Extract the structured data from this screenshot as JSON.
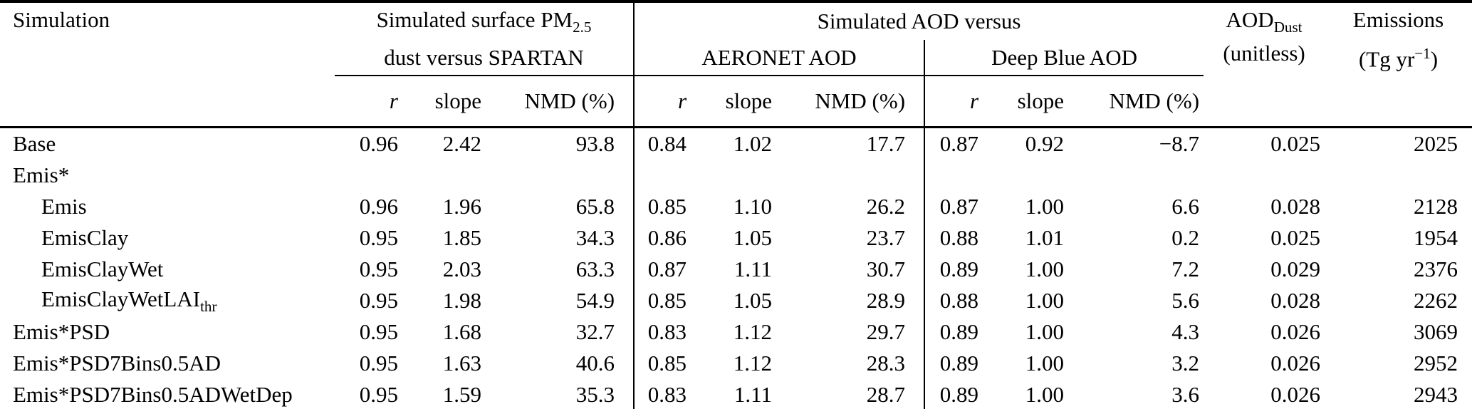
{
  "table": {
    "title_col": "Simulation",
    "groups": {
      "spartan": {
        "l1_main": "Simulated surface PM",
        "l1_sub": "2.5",
        "line2": "dust versus SPARTAN"
      },
      "aod_versus": "Simulated AOD versus",
      "aeronet": "AERONET AOD",
      "deepblue": "Deep Blue AOD",
      "aod_dust": {
        "main": "AOD",
        "sub": "Dust",
        "line2": "(unitless)"
      },
      "emissions": {
        "line1": "Emissions",
        "l2_pre": "(Tg yr",
        "l2_sup": "−1",
        "l2_post": ")"
      }
    },
    "sub": {
      "r": "r",
      "slope": "slope",
      "nmd": "NMD (%)"
    },
    "rows": [
      {
        "name": "Base",
        "sub": "",
        "indent": false,
        "values": [
          "0.96",
          "2.42",
          "93.8",
          "0.84",
          "1.02",
          "17.7",
          "0.87",
          "0.92",
          "−8.7",
          "0.025",
          "2025"
        ]
      },
      {
        "name": "Emis*",
        "sub": "",
        "indent": false,
        "values": [
          "",
          "",
          "",
          "",
          "",
          "",
          "",
          "",
          "",
          "",
          ""
        ]
      },
      {
        "name": "Emis",
        "sub": "",
        "indent": true,
        "values": [
          "0.96",
          "1.96",
          "65.8",
          "0.85",
          "1.10",
          "26.2",
          "0.87",
          "1.00",
          "6.6",
          "0.028",
          "2128"
        ]
      },
      {
        "name": "EmisClay",
        "sub": "",
        "indent": true,
        "values": [
          "0.95",
          "1.85",
          "34.3",
          "0.86",
          "1.05",
          "23.7",
          "0.88",
          "1.01",
          "0.2",
          "0.025",
          "1954"
        ]
      },
      {
        "name": "EmisClayWet",
        "sub": "",
        "indent": true,
        "values": [
          "0.95",
          "2.03",
          "63.3",
          "0.87",
          "1.11",
          "30.7",
          "0.89",
          "1.00",
          "7.2",
          "0.029",
          "2376"
        ]
      },
      {
        "name": "EmisClayWetLAI",
        "sub": "thr",
        "indent": true,
        "values": [
          "0.95",
          "1.98",
          "54.9",
          "0.85",
          "1.05",
          "28.9",
          "0.88",
          "1.00",
          "5.6",
          "0.028",
          "2262"
        ]
      },
      {
        "name": "Emis*PSD",
        "sub": "",
        "indent": false,
        "values": [
          "0.95",
          "1.68",
          "32.7",
          "0.83",
          "1.12",
          "29.7",
          "0.89",
          "1.00",
          "4.3",
          "0.026",
          "3069"
        ]
      },
      {
        "name": "Emis*PSD7Bins0.5AD",
        "sub": "",
        "indent": false,
        "values": [
          "0.95",
          "1.63",
          "40.6",
          "0.85",
          "1.12",
          "28.3",
          "0.89",
          "1.00",
          "3.2",
          "0.026",
          "2952"
        ]
      },
      {
        "name": "Emis*PSD7Bins0.5ADWetDep",
        "sub": "",
        "indent": false,
        "values": [
          "0.95",
          "1.59",
          "35.3",
          "0.83",
          "1.11",
          "28.7",
          "0.89",
          "1.00",
          "3.6",
          "0.026",
          "2943"
        ]
      }
    ]
  }
}
